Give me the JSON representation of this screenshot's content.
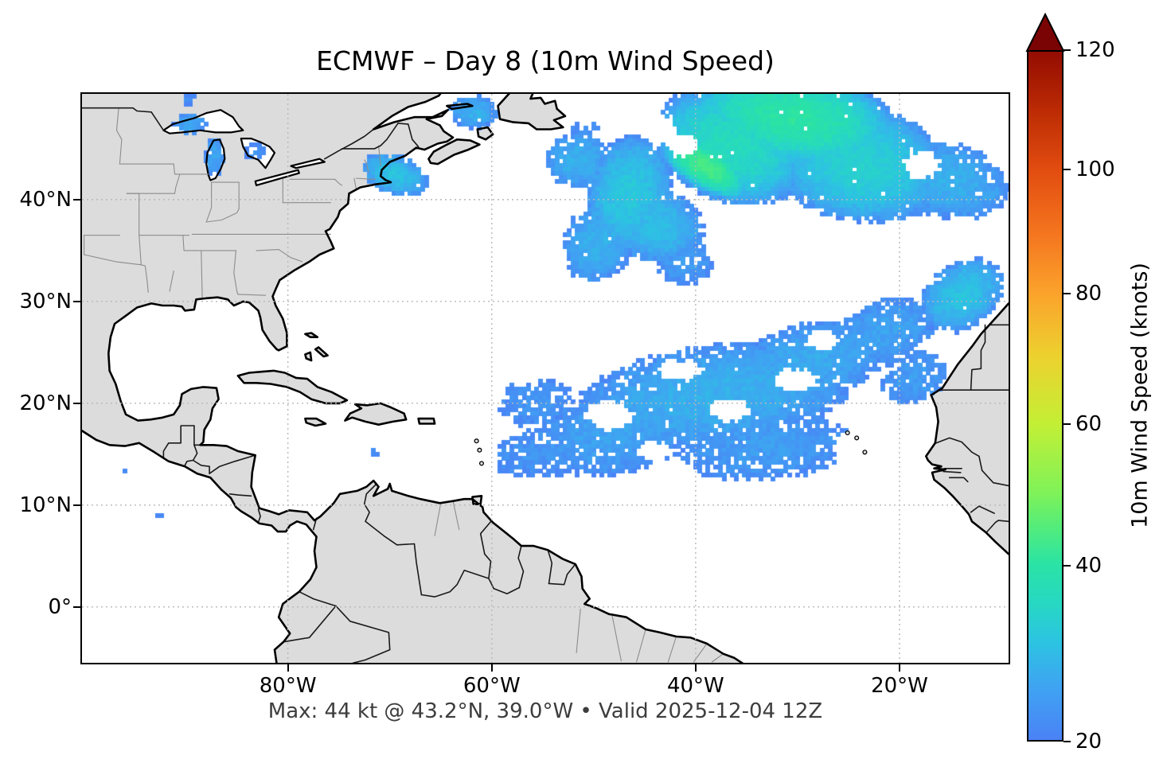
{
  "title": "ECMWF – Day 8 (10m Wind Speed)",
  "caption": "Max: 44 kt @ 43.2°N, 39.0°W • Valid 2025-12-04 12Z",
  "colorbar": {
    "label": "10m Wind Speed (knots)",
    "vmin": 20,
    "vmax": 120,
    "gamma": 0.85,
    "over_color": "#7a0403",
    "ticks": [
      {
        "value": 20,
        "label": "20"
      },
      {
        "value": 40,
        "label": "40"
      },
      {
        "value": 60,
        "label": "60"
      },
      {
        "value": 80,
        "label": "80"
      },
      {
        "value": 100,
        "label": "100"
      },
      {
        "value": 120,
        "label": "120"
      }
    ],
    "stops": [
      [
        20,
        "#4a82f6"
      ],
      [
        25,
        "#3fa4f2"
      ],
      [
        30,
        "#2cc3e2"
      ],
      [
        35,
        "#27d8c2"
      ],
      [
        40,
        "#2ae3a5"
      ],
      [
        45,
        "#52ec7c"
      ],
      [
        50,
        "#7ff258"
      ],
      [
        60,
        "#c3ef35"
      ],
      [
        70,
        "#ecd22e"
      ],
      [
        80,
        "#fba32c"
      ],
      [
        90,
        "#f4741e"
      ],
      [
        100,
        "#e24d10"
      ],
      [
        110,
        "#bc2b04"
      ],
      [
        120,
        "#930c01"
      ]
    ]
  },
  "chart_data": {
    "type": "heatmap",
    "model": "ECMWF",
    "forecast_day": 8,
    "variable": "10m Wind Speed",
    "units": "knots",
    "valid": "2025-12-04 12Z",
    "max": {
      "value_kt": 44,
      "lat_label": "43.2°N",
      "lon_label": "39.0°W"
    },
    "lon_range": [
      -100.2,
      -9.3
    ],
    "lat_range": [
      -5.48,
      50.38
    ],
    "grid_deg": 0.4,
    "threshold_kt": 20,
    "speckle_seed": 7,
    "axes": {
      "xticks": [
        {
          "value": -80,
          "label": "80°W"
        },
        {
          "value": -60,
          "label": "60°W"
        },
        {
          "value": -40,
          "label": "40°W"
        },
        {
          "value": -20,
          "label": "20°W"
        }
      ],
      "yticks": [
        {
          "value": 40,
          "label": "40°N"
        },
        {
          "value": 30,
          "label": "30°N"
        },
        {
          "value": 20,
          "label": "20°N"
        },
        {
          "value": 10,
          "label": "10°N"
        },
        {
          "value": 0,
          "label": "0°"
        }
      ],
      "grid_lons": [
        -80,
        -60,
        -40,
        -20
      ],
      "grid_lats": [
        0,
        10,
        20,
        30,
        40
      ]
    },
    "feature_fields": [
      "lon",
      "lat",
      "rx_deg",
      "ry_deg",
      "peak_kt",
      "rot_deg"
    ],
    "wind_features": [
      [
        -30.5,
        48.0,
        10.5,
        4.8,
        40,
        -8
      ],
      [
        -36.5,
        45.2,
        8.0,
        5.5,
        36,
        -20
      ],
      [
        -24.0,
        43.5,
        9.0,
        5.8,
        33,
        -10
      ],
      [
        -15.0,
        41.8,
        5.5,
        3.8,
        27,
        -15
      ],
      [
        -39.0,
        43.2,
        5.0,
        2.3,
        44,
        -32
      ],
      [
        -46.5,
        40.5,
        4.2,
        6.0,
        31,
        -12
      ],
      [
        -49.5,
        35.8,
        3.4,
        4.2,
        27,
        -22
      ],
      [
        -44.0,
        37.5,
        5.0,
        3.8,
        29,
        -18
      ],
      [
        -51.5,
        43.8,
        3.2,
        2.8,
        27,
        0
      ],
      [
        -41.0,
        33.8,
        3.0,
        2.2,
        24,
        0
      ],
      [
        -11.8,
        40.7,
        2.8,
        2.0,
        25,
        0
      ],
      [
        -38.0,
        20.8,
        14.0,
        5.0,
        27,
        7
      ],
      [
        -47.5,
        17.2,
        8.5,
        4.2,
        25,
        12
      ],
      [
        -28.5,
        24.2,
        7.5,
        3.8,
        26,
        10
      ],
      [
        -21.5,
        27.0,
        5.5,
        3.2,
        25,
        20
      ],
      [
        -13.8,
        30.6,
        4.6,
        3.2,
        30,
        35
      ],
      [
        -54.5,
        15.3,
        5.5,
        2.6,
        23,
        10
      ],
      [
        -33.0,
        15.8,
        9.0,
        3.4,
        24,
        4
      ],
      [
        -55.5,
        20.0,
        4.0,
        2.5,
        23,
        0
      ],
      [
        -18.5,
        22.5,
        3.5,
        2.5,
        24,
        25
      ],
      [
        -89.6,
        47.4,
        1.7,
        1.0,
        25,
        0
      ],
      [
        -87.2,
        44.2,
        0.9,
        1.9,
        25,
        0
      ],
      [
        -83.3,
        44.7,
        1.1,
        0.8,
        23,
        0
      ],
      [
        -61.8,
        48.6,
        2.4,
        1.7,
        27,
        0
      ],
      [
        -69.5,
        42.4,
        3.4,
        2.0,
        30,
        -20
      ],
      [
        -89.8,
        49.9,
        0.8,
        0.6,
        22,
        0
      ],
      [
        -50.8,
        46.9,
        1.3,
        0.9,
        23,
        0
      ],
      [
        -95.9,
        13.8,
        0.5,
        0.45,
        21,
        0
      ],
      [
        -92.6,
        8.8,
        0.5,
        0.45,
        21,
        0
      ],
      [
        -71.9,
        15.1,
        0.5,
        0.4,
        21,
        0
      ],
      [
        -71.2,
        15.35,
        0.5,
        0.4,
        21,
        0
      ]
    ],
    "calm_holes": [
      [
        -43.6,
        46.9,
        2.0,
        1.6
      ],
      [
        -41.3,
        45.3,
        1.6,
        1.3
      ],
      [
        -45.8,
        48.4,
        1.6,
        1.3
      ],
      [
        -17.8,
        43.4,
        2.0,
        1.5
      ],
      [
        -48.5,
        18.8,
        2.6,
        1.5
      ],
      [
        -36.5,
        19.3,
        2.2,
        1.2
      ],
      [
        -30.0,
        22.3,
        2.2,
        1.3
      ],
      [
        -24.4,
        16.0,
        2.4,
        1.6
      ],
      [
        -41.5,
        23.2,
        2.4,
        1.1
      ],
      [
        -27.5,
        26.2,
        1.8,
        1.1
      ],
      [
        -44.0,
        15.2,
        2.0,
        1.0
      ]
    ]
  }
}
